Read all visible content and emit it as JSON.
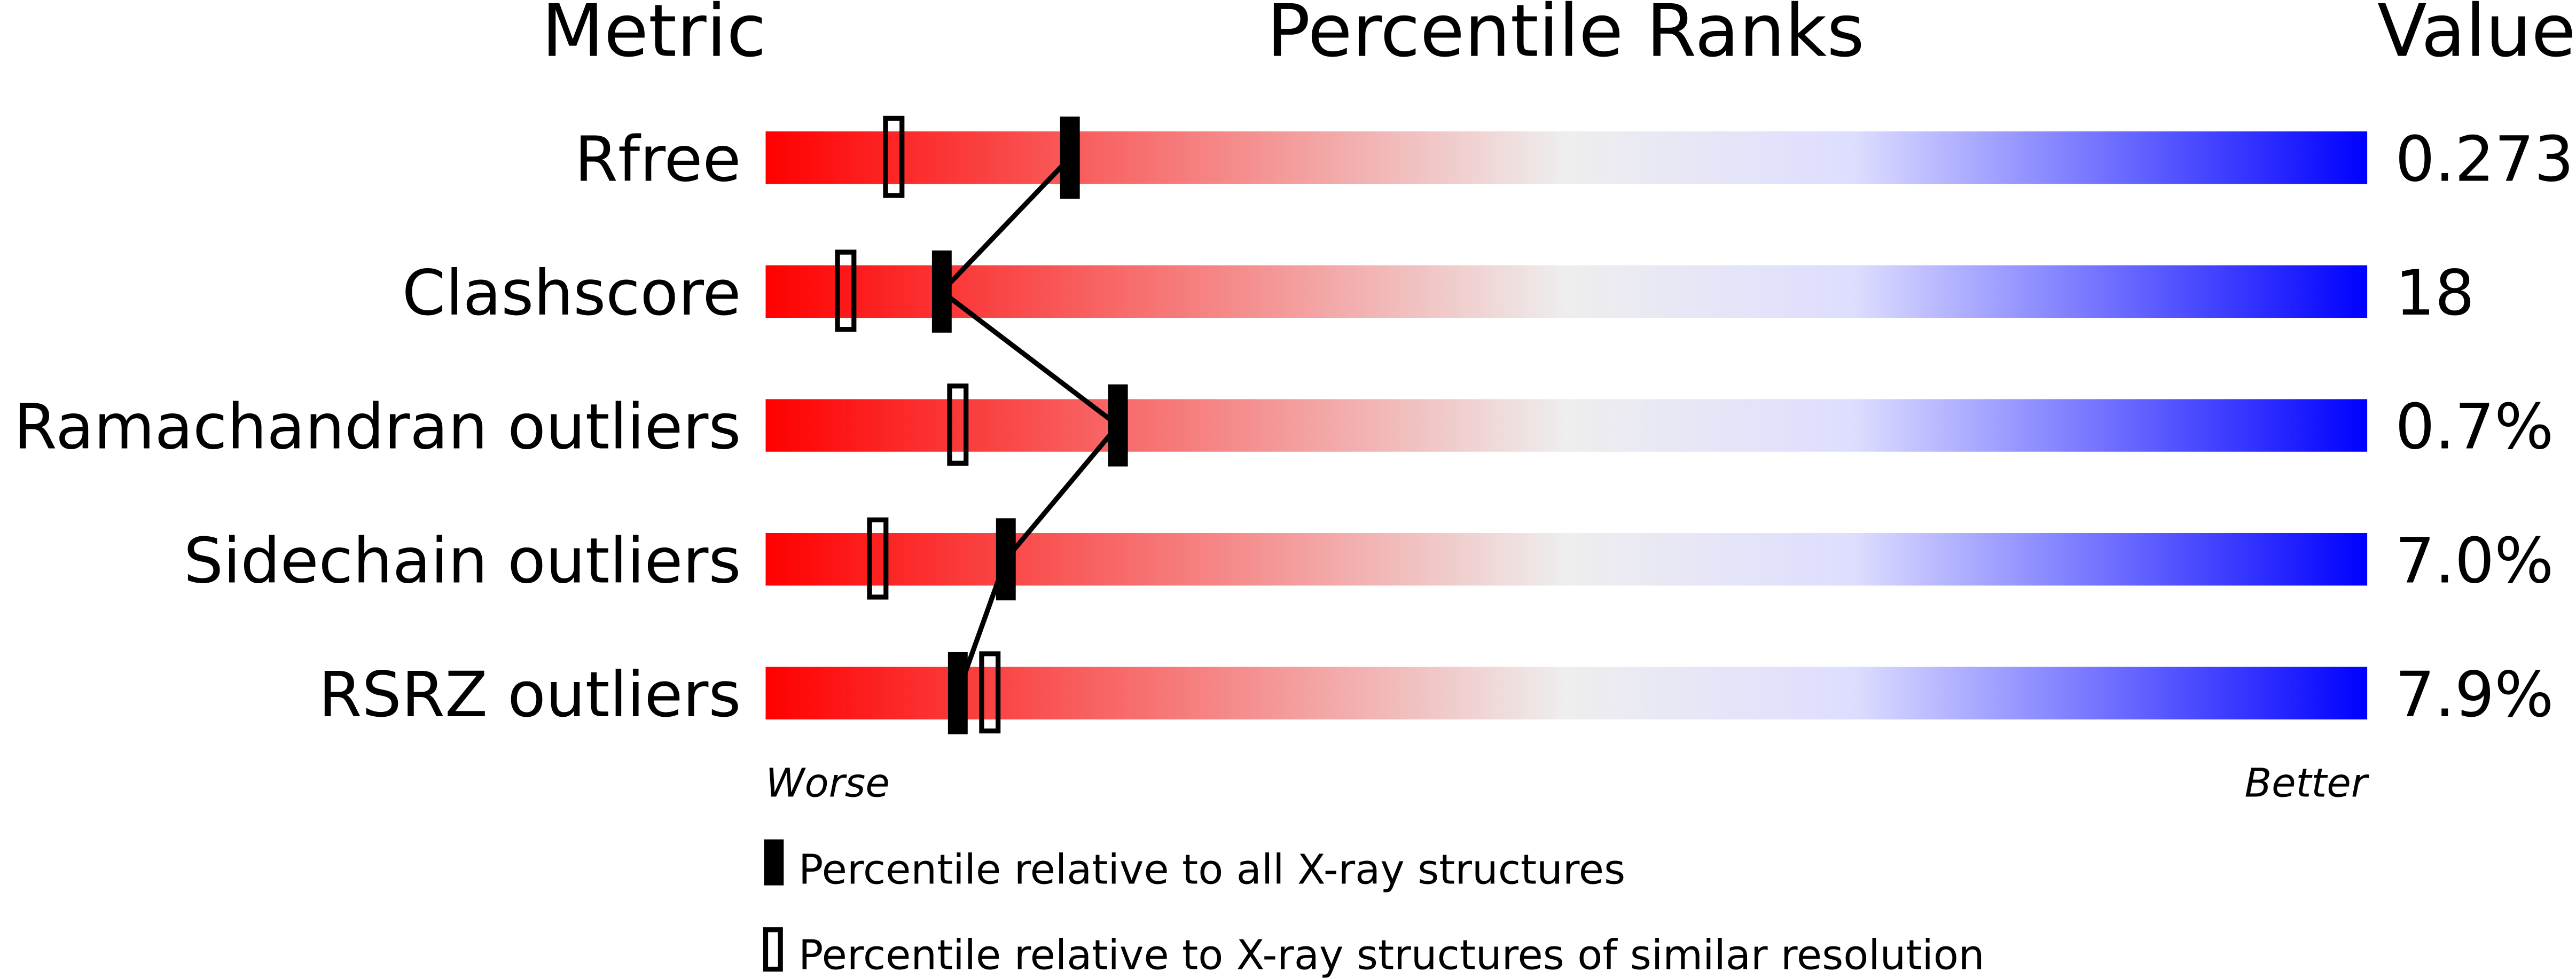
{
  "chart_data": {
    "type": "percentile-slider",
    "headers": {
      "metric": "Metric",
      "ranks": "Percentile Ranks",
      "value": "Value"
    },
    "axis": {
      "min": 0,
      "max": 100,
      "left_label": "Worse",
      "right_label": "Better"
    },
    "colors": {
      "worse": "#ff0000",
      "middle": "#eeeeee",
      "better_light": "#ddddff",
      "better": "#0000ff",
      "marker": "#000000"
    },
    "metrics": [
      {
        "name": "Rfree",
        "value": "0.273",
        "percentile_all": 19,
        "percentile_similar": 8
      },
      {
        "name": "Clashscore",
        "value": "18",
        "percentile_all": 11,
        "percentile_similar": 5
      },
      {
        "name": "Ramachandran outliers",
        "value": "0.7%",
        "percentile_all": 22,
        "percentile_similar": 12
      },
      {
        "name": "Sidechain outliers",
        "value": "7.0%",
        "percentile_all": 15,
        "percentile_similar": 7
      },
      {
        "name": "RSRZ outliers",
        "value": "7.9%",
        "percentile_all": 12,
        "percentile_similar": 14
      }
    ],
    "legend": {
      "all": "Percentile relative to all X-ray structures",
      "similar": "Percentile relative to X-ray structures of similar resolution"
    }
  }
}
